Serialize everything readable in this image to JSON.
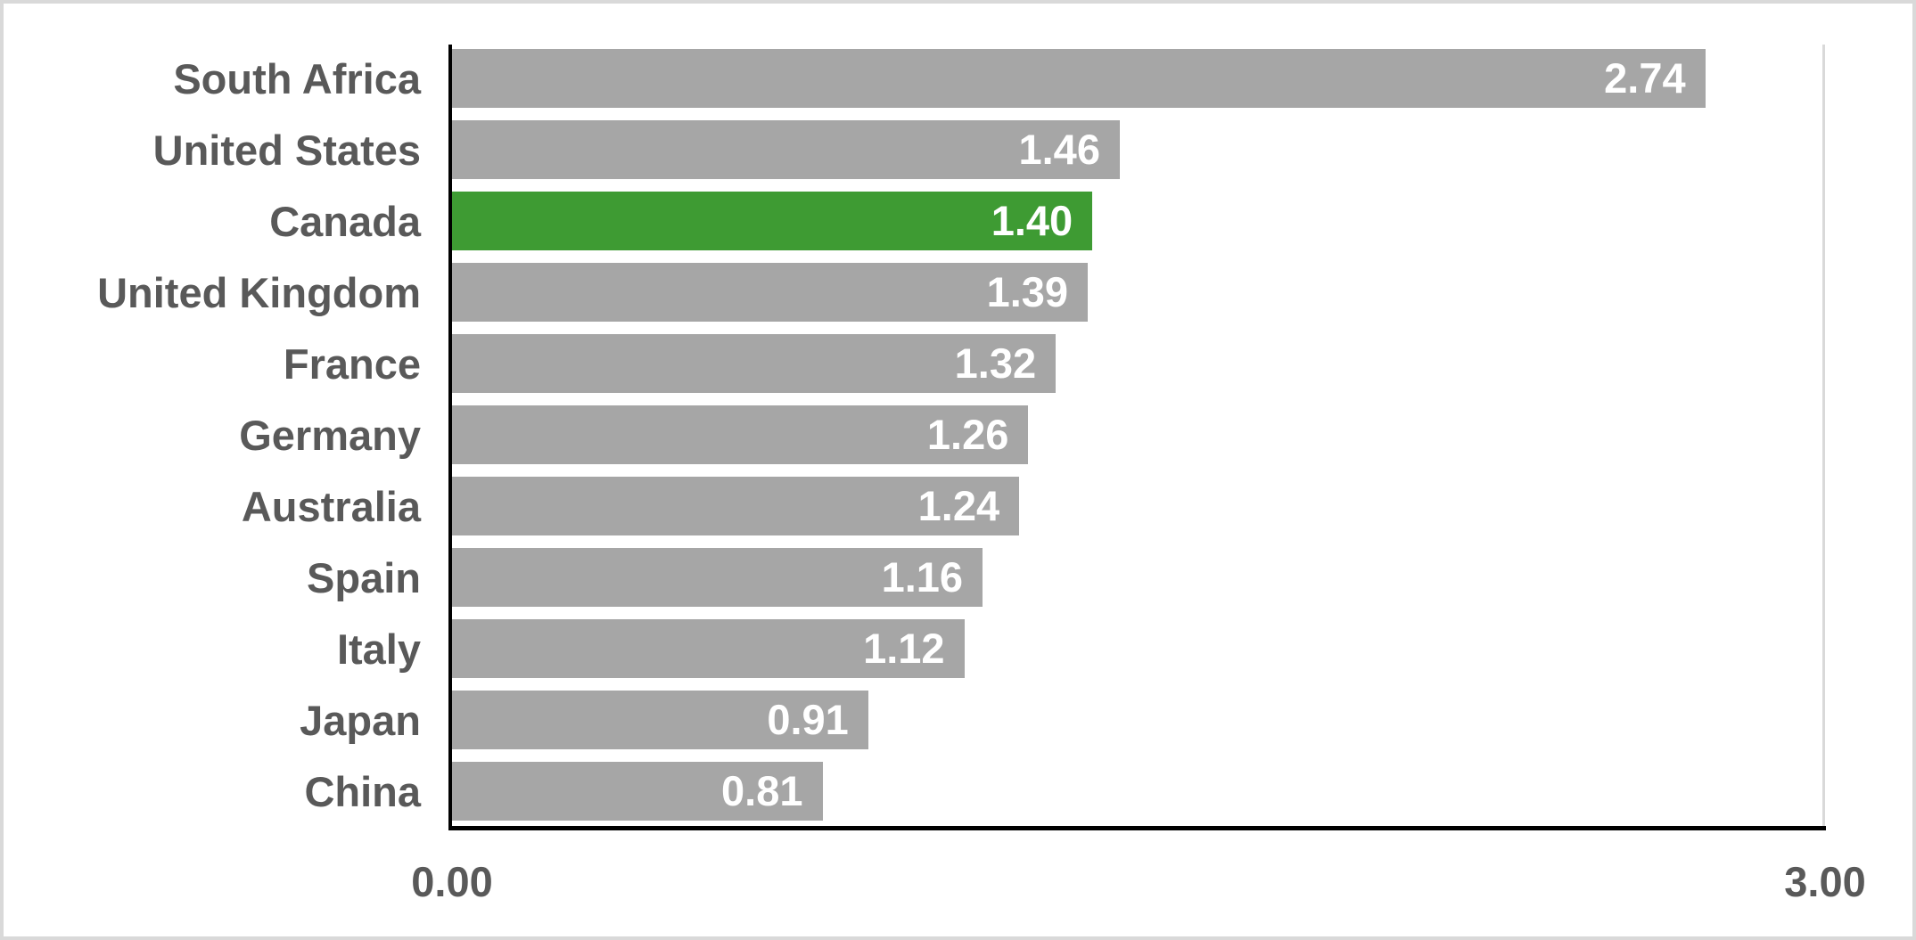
{
  "chart_data": {
    "type": "bar",
    "orientation": "horizontal",
    "title": "",
    "xlabel": "",
    "ylabel": "",
    "categories": [
      "South Africa",
      "United States",
      "Canada",
      "United Kingdom",
      "France",
      "Germany",
      "Australia",
      "Spain",
      "Italy",
      "Japan",
      "China"
    ],
    "values": [
      2.74,
      1.46,
      1.4,
      1.39,
      1.32,
      1.26,
      1.24,
      1.16,
      1.12,
      0.91,
      0.81
    ],
    "value_labels": [
      "2.74",
      "1.46",
      "1.40",
      "1.39",
      "1.32",
      "1.26",
      "1.24",
      "1.16",
      "1.12",
      "0.91",
      "0.81"
    ],
    "highlighted_category": "Canada",
    "highlighted_index": 2,
    "xlim": [
      0,
      3
    ],
    "x_ticks": [
      "0.00",
      "3.00"
    ],
    "grid": "single-gridline-at-max",
    "legend": "none",
    "colors": {
      "bar": "#a6a6a6",
      "highlight": "#3e9b33",
      "category_label": "#595959",
      "value_label": "#ffffff",
      "axis": "#000000",
      "gridline": "#d9d9d9",
      "border": "#d9d9d9",
      "background": "#ffffff"
    }
  }
}
